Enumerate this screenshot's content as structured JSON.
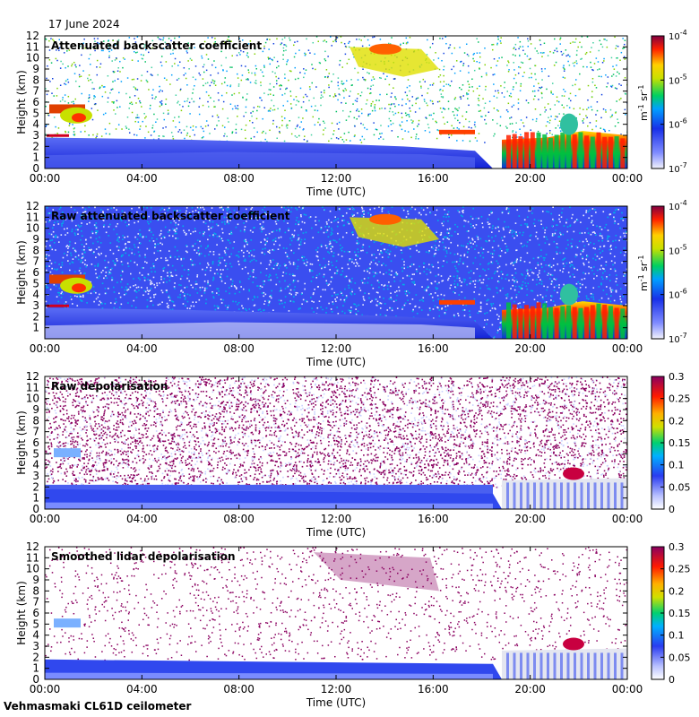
{
  "header": {
    "date": "17 June 2024"
  },
  "footer": {
    "instrument": "Vehmasmaki CL61D ceilometer"
  },
  "chart_data": [
    {
      "type": "heatmap",
      "title": "Attenuated backscatter coefficient",
      "xlabel": "Time (UTC)",
      "ylabel": "Height (km)",
      "x_ticks": [
        "00:00",
        "04:00",
        "08:00",
        "12:00",
        "16:00",
        "20:00",
        "00:00"
      ],
      "y_ticks": [
        "0",
        "1",
        "2",
        "3",
        "4",
        "5",
        "6",
        "7",
        "8",
        "9",
        "10",
        "11",
        "12"
      ],
      "ylim": [
        0,
        12
      ],
      "colorbar": {
        "scale": "log",
        "ticks": [
          "10",
          "10",
          "10",
          "10"
        ],
        "exponents": [
          "-4",
          "-5",
          "-6",
          "-7"
        ],
        "unit": "m",
        "unit_exp": "-1",
        "unit2": "sr",
        "unit2_exp": "-1",
        "range": [
          1e-07,
          0.0001
        ]
      }
    },
    {
      "type": "heatmap",
      "title": "Raw attenuated backscatter coefficient",
      "xlabel": "Time (UTC)",
      "ylabel": "Height (km)",
      "x_ticks": [
        "00:00",
        "04:00",
        "08:00",
        "12:00",
        "16:00",
        "20:00",
        "00:00"
      ],
      "y_ticks": [
        "1",
        "2",
        "3",
        "4",
        "5",
        "6",
        "7",
        "8",
        "9",
        "10",
        "11",
        "12"
      ],
      "ylim": [
        0,
        12
      ],
      "colorbar": {
        "scale": "log",
        "ticks": [
          "10",
          "10",
          "10",
          "10"
        ],
        "exponents": [
          "-4",
          "-5",
          "-6",
          "-7"
        ],
        "unit": "m",
        "unit_exp": "-1",
        "unit2": "sr",
        "unit2_exp": "-1",
        "range": [
          1e-07,
          0.0001
        ]
      }
    },
    {
      "type": "heatmap",
      "title": "Raw depolarisation",
      "xlabel": "Time (UTC)",
      "ylabel": "Height (km)",
      "x_ticks": [
        "00:00",
        "04:00",
        "08:00",
        "12:00",
        "16:00",
        "20:00",
        "00:00"
      ],
      "y_ticks": [
        "0",
        "1",
        "2",
        "3",
        "4",
        "5",
        "6",
        "7",
        "8",
        "9",
        "10",
        "11",
        "12"
      ],
      "ylim": [
        0,
        12
      ],
      "colorbar": {
        "scale": "linear",
        "ticks": [
          "0.3",
          "0.25",
          "0.2",
          "0.15",
          "0.1",
          "0.05",
          "0"
        ],
        "range": [
          0,
          0.3
        ]
      }
    },
    {
      "type": "heatmap",
      "title": "Smoothed lidar depolarisation",
      "xlabel": "Time (UTC)",
      "ylabel": "Height (km)",
      "x_ticks": [
        "00:00",
        "04:00",
        "08:00",
        "12:00",
        "16:00",
        "20:00",
        "00:00"
      ],
      "y_ticks": [
        "0",
        "1",
        "2",
        "3",
        "4",
        "5",
        "6",
        "7",
        "8",
        "9",
        "10",
        "11",
        "12"
      ],
      "ylim": [
        0,
        12
      ],
      "colorbar": {
        "scale": "linear",
        "ticks": [
          "0.3",
          "0.25",
          "0.2",
          "0.15",
          "0.1",
          "0.05",
          "0"
        ],
        "range": [
          0,
          0.3
        ]
      }
    }
  ]
}
